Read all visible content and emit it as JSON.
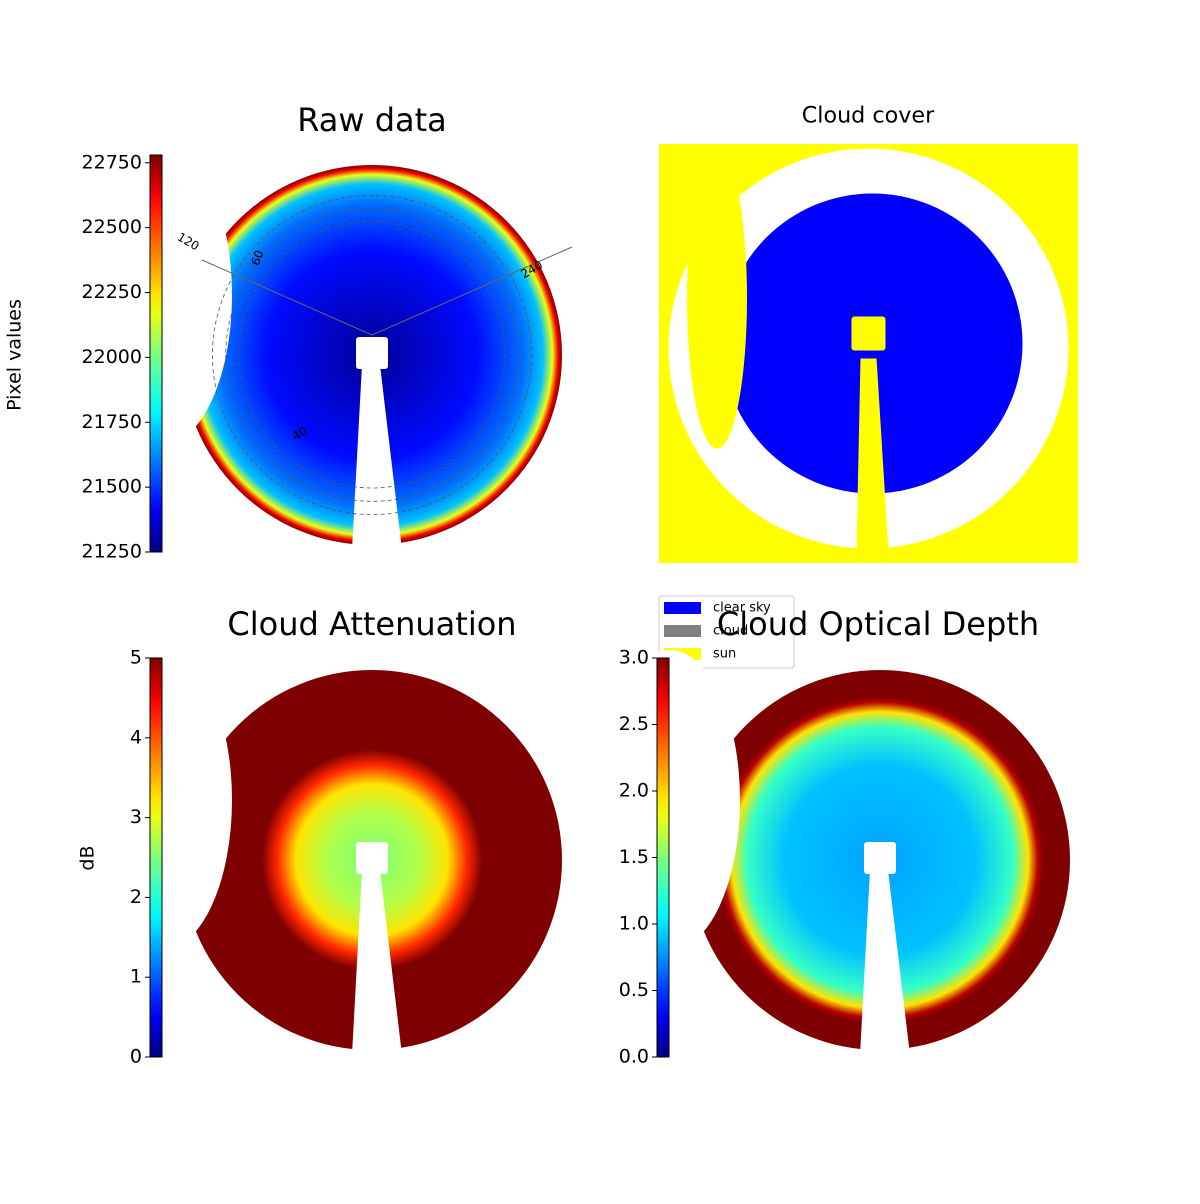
{
  "chart_data": [
    {
      "type": "heatmap",
      "title": "Raw data",
      "colorbar_label": "Pixel values",
      "colormap": "jet",
      "clim": [
        21250,
        22780
      ],
      "cticks": [
        21250,
        21500,
        21750,
        22000,
        22250,
        22500,
        22750
      ],
      "annotations": [
        "120",
        "60",
        "240",
        "40"
      ]
    },
    {
      "type": "categorical",
      "title": "Cloud cover",
      "categories": [
        "clear sky",
        "cloud",
        "sun"
      ],
      "colors": [
        "#0000ff",
        "#808080",
        "#ffff00"
      ]
    },
    {
      "type": "heatmap",
      "title": "Cloud Attenuation",
      "colorbar_label": "dB",
      "colormap": "jet",
      "clim": [
        0,
        5
      ],
      "cticks": [
        0,
        1,
        2,
        3,
        4,
        5
      ]
    },
    {
      "type": "heatmap",
      "title": "Cloud Optical Depth",
      "colormap": "jet",
      "clim": [
        0,
        3
      ],
      "cticks": [
        {
          "value": 0,
          "label": "0.0"
        },
        {
          "value": 0.5,
          "label": "0.5"
        },
        {
          "value": 1,
          "label": "1.0"
        },
        {
          "value": 1.5,
          "label": "1.5"
        },
        {
          "value": 2,
          "label": "2.0"
        },
        {
          "value": 2.5,
          "label": "2.5"
        },
        {
          "value": 3,
          "label": "3.0"
        }
      ]
    }
  ]
}
